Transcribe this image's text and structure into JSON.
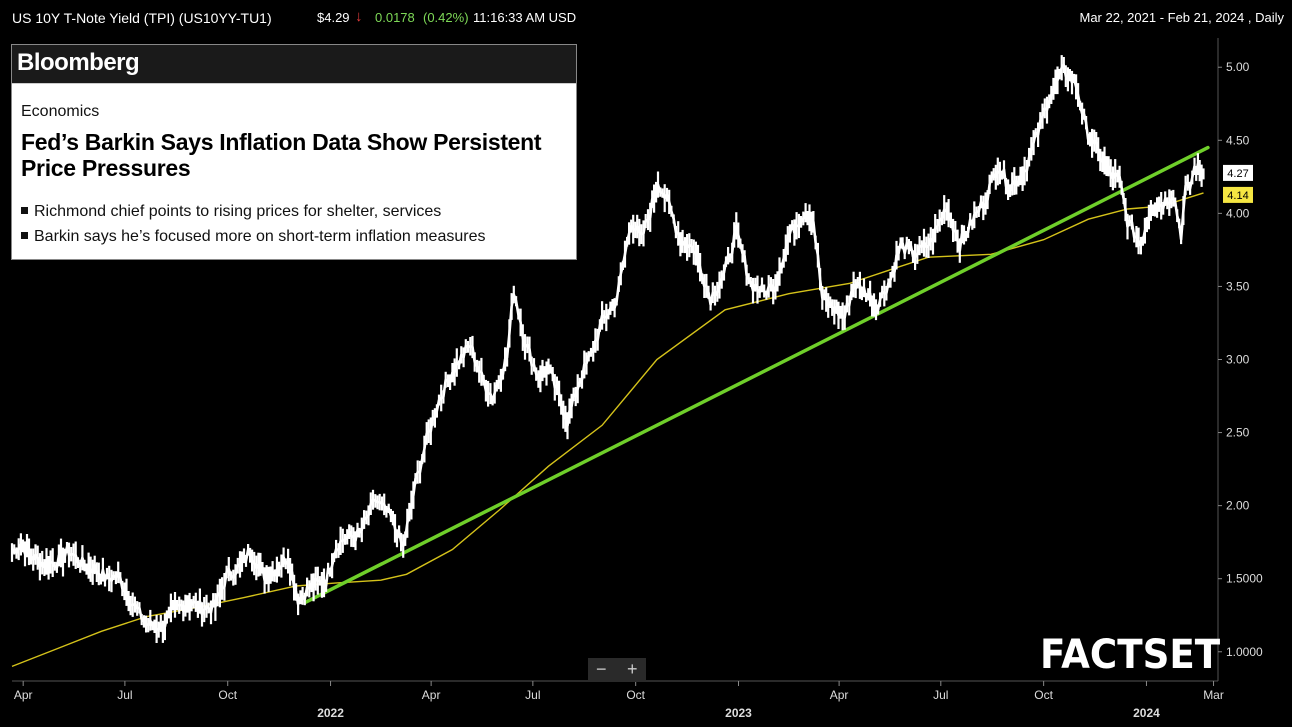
{
  "header": {
    "title": "US 10Y T-Note Yield (TPI)  (US10YY-TU1)",
    "price": "$4.29",
    "arrow": "↓",
    "change": "0.0178",
    "change_pct": "(0.42%)",
    "time": "11:16:33 AM USD",
    "date_range": "Mar 22, 2021 - Feb 21, 2024 , Daily"
  },
  "news": {
    "brand": "Bloomberg",
    "section": "Economics",
    "headline": "Fed’s Barkin Says Inflation Data Show Persistent Price Pressures",
    "bullets": [
      "Richmond chief points to rising prices for shelter, services",
      "Barkin says he’s focused more on short-term inflation measures"
    ]
  },
  "zoom": {
    "minus": "−",
    "plus": "+"
  },
  "logo": "FACTSET",
  "colors": {
    "price": "#ffffff",
    "moving_average": "#d4c21a",
    "trendline": "#6fcf2a",
    "last_ma_badge": "#f5e642"
  },
  "chart_data": {
    "type": "line",
    "ylim": [
      0.8,
      5.2
    ],
    "xlim": [
      "2021-03-22",
      "2024-03-05"
    ],
    "y_ticks": [
      "1.0000",
      "1.5000",
      "2.00",
      "2.50",
      "3.00",
      "3.50",
      "4.00",
      "4.50",
      "5.00"
    ],
    "y_tick_values": [
      1.0,
      1.5,
      2.0,
      2.5,
      3.0,
      3.5,
      4.0,
      4.5,
      5.0
    ],
    "x_ticks": [
      {
        "label": "Apr",
        "date": "2021-04-01"
      },
      {
        "label": "Jul",
        "date": "2021-07-01"
      },
      {
        "label": "Oct",
        "date": "2021-10-01"
      },
      {
        "label": "2022",
        "date": "2022-01-01",
        "year": true
      },
      {
        "label": "Apr",
        "date": "2022-04-01"
      },
      {
        "label": "Jul",
        "date": "2022-07-01"
      },
      {
        "label": "Oct",
        "date": "2022-10-01"
      },
      {
        "label": "2023",
        "date": "2023-01-01",
        "year": true
      },
      {
        "label": "Apr",
        "date": "2023-04-01"
      },
      {
        "label": "Jul",
        "date": "2023-07-01"
      },
      {
        "label": "Oct",
        "date": "2023-10-01"
      },
      {
        "label": "2024",
        "date": "2024-01-01",
        "year": true
      },
      {
        "label": "Mar",
        "date": "2024-03-01"
      }
    ],
    "last_price_label": "4.27",
    "last_ma_label": "4.14",
    "last_price": 4.27,
    "last_ma": 4.14,
    "series": [
      {
        "kind": "price",
        "points": [
          [
            "2021-03-22",
            1.68
          ],
          [
            "2021-03-30",
            1.74
          ],
          [
            "2021-04-08",
            1.66
          ],
          [
            "2021-04-20",
            1.6
          ],
          [
            "2021-05-03",
            1.62
          ],
          [
            "2021-05-12",
            1.69
          ],
          [
            "2021-05-24",
            1.6
          ],
          [
            "2021-06-04",
            1.57
          ],
          [
            "2021-06-15",
            1.5
          ],
          [
            "2021-06-25",
            1.52
          ],
          [
            "2021-07-08",
            1.33
          ],
          [
            "2021-07-20",
            1.19
          ],
          [
            "2021-08-04",
            1.17
          ],
          [
            "2021-08-13",
            1.28
          ],
          [
            "2021-08-26",
            1.34
          ],
          [
            "2021-09-08",
            1.3
          ],
          [
            "2021-09-20",
            1.31
          ],
          [
            "2021-09-30",
            1.52
          ],
          [
            "2021-10-12",
            1.58
          ],
          [
            "2021-10-21",
            1.69
          ],
          [
            "2021-11-03",
            1.52
          ],
          [
            "2021-11-12",
            1.56
          ],
          [
            "2021-11-24",
            1.65
          ],
          [
            "2021-12-03",
            1.36
          ],
          [
            "2021-12-15",
            1.45
          ],
          [
            "2021-12-28",
            1.49
          ],
          [
            "2022-01-06",
            1.72
          ],
          [
            "2022-01-14",
            1.78
          ],
          [
            "2022-01-27",
            1.8
          ],
          [
            "2022-02-10",
            2.04
          ],
          [
            "2022-02-24",
            1.92
          ],
          [
            "2022-03-07",
            1.71
          ],
          [
            "2022-03-18",
            2.15
          ],
          [
            "2022-03-28",
            2.45
          ],
          [
            "2022-04-08",
            2.72
          ],
          [
            "2022-04-20",
            2.92
          ],
          [
            "2022-05-06",
            3.1
          ],
          [
            "2022-05-16",
            2.88
          ],
          [
            "2022-05-26",
            2.74
          ],
          [
            "2022-06-08",
            3.02
          ],
          [
            "2022-06-14",
            3.48
          ],
          [
            "2022-06-24",
            3.12
          ],
          [
            "2022-07-06",
            2.88
          ],
          [
            "2022-07-15",
            2.94
          ],
          [
            "2022-08-01",
            2.58
          ],
          [
            "2022-08-12",
            2.86
          ],
          [
            "2022-08-22",
            3.03
          ],
          [
            "2022-09-01",
            3.26
          ],
          [
            "2022-09-14",
            3.41
          ],
          [
            "2022-09-27",
            3.95
          ],
          [
            "2022-10-06",
            3.82
          ],
          [
            "2022-10-14",
            4.01
          ],
          [
            "2022-10-21",
            4.22
          ],
          [
            "2022-10-31",
            4.05
          ],
          [
            "2022-11-10",
            3.82
          ],
          [
            "2022-11-22",
            3.76
          ],
          [
            "2022-12-07",
            3.42
          ],
          [
            "2022-12-19",
            3.58
          ],
          [
            "2022-12-30",
            3.87
          ],
          [
            "2023-01-12",
            3.52
          ],
          [
            "2023-01-24",
            3.46
          ],
          [
            "2023-02-03",
            3.52
          ],
          [
            "2023-02-16",
            3.86
          ],
          [
            "2023-03-02",
            4.02
          ],
          [
            "2023-03-09",
            3.95
          ],
          [
            "2023-03-17",
            3.42
          ],
          [
            "2023-03-24",
            3.37
          ],
          [
            "2023-04-06",
            3.29
          ],
          [
            "2023-04-14",
            3.52
          ],
          [
            "2023-04-27",
            3.45
          ],
          [
            "2023-05-04",
            3.36
          ],
          [
            "2023-05-17",
            3.55
          ],
          [
            "2023-05-26",
            3.78
          ],
          [
            "2023-06-08",
            3.72
          ],
          [
            "2023-06-22",
            3.8
          ],
          [
            "2023-07-06",
            4.05
          ],
          [
            "2023-07-18",
            3.79
          ],
          [
            "2023-07-31",
            3.97
          ],
          [
            "2023-08-10",
            4.1
          ],
          [
            "2023-08-21",
            4.33
          ],
          [
            "2023-09-01",
            4.18
          ],
          [
            "2023-09-14",
            4.29
          ],
          [
            "2023-09-28",
            4.6
          ],
          [
            "2023-10-06",
            4.8
          ],
          [
            "2023-10-19",
            4.98
          ],
          [
            "2023-10-30",
            4.88
          ],
          [
            "2023-11-08",
            4.58
          ],
          [
            "2023-11-17",
            4.44
          ],
          [
            "2023-11-30",
            4.27
          ],
          [
            "2023-12-08",
            4.22
          ],
          [
            "2023-12-15",
            3.95
          ],
          [
            "2023-12-27",
            3.79
          ],
          [
            "2024-01-05",
            4.05
          ],
          [
            "2024-01-16",
            4.07
          ],
          [
            "2024-01-25",
            4.14
          ],
          [
            "2024-02-01",
            3.86
          ],
          [
            "2024-02-05",
            4.16
          ],
          [
            "2024-02-09",
            4.18
          ],
          [
            "2024-02-13",
            4.31
          ],
          [
            "2024-02-16",
            4.3
          ],
          [
            "2024-02-21",
            4.27
          ]
        ]
      },
      {
        "kind": "moving_average",
        "points": [
          [
            "2021-03-22",
            0.9
          ],
          [
            "2021-05-01",
            1.02
          ],
          [
            "2021-06-10",
            1.14
          ],
          [
            "2021-07-20",
            1.24
          ],
          [
            "2021-09-01",
            1.3
          ],
          [
            "2021-10-15",
            1.37
          ],
          [
            "2021-12-01",
            1.45
          ],
          [
            "2022-01-05",
            1.47
          ],
          [
            "2022-02-15",
            1.49
          ],
          [
            "2022-03-10",
            1.53
          ],
          [
            "2022-04-20",
            1.7
          ],
          [
            "2022-06-01",
            1.97
          ],
          [
            "2022-07-15",
            2.27
          ],
          [
            "2022-09-01",
            2.55
          ],
          [
            "2022-10-20",
            3.0
          ],
          [
            "2022-12-20",
            3.34
          ],
          [
            "2023-02-15",
            3.45
          ],
          [
            "2023-04-10",
            3.52
          ],
          [
            "2023-05-15",
            3.61
          ],
          [
            "2023-06-20",
            3.7
          ],
          [
            "2023-08-15",
            3.72
          ],
          [
            "2023-10-01",
            3.82
          ],
          [
            "2023-11-10",
            3.96
          ],
          [
            "2023-12-15",
            4.03
          ],
          [
            "2024-01-15",
            4.05
          ],
          [
            "2024-02-21",
            4.14
          ]
        ]
      },
      {
        "kind": "trendline",
        "points": [
          [
            "2021-12-10",
            1.34
          ],
          [
            "2024-02-25",
            4.45
          ]
        ]
      }
    ]
  }
}
